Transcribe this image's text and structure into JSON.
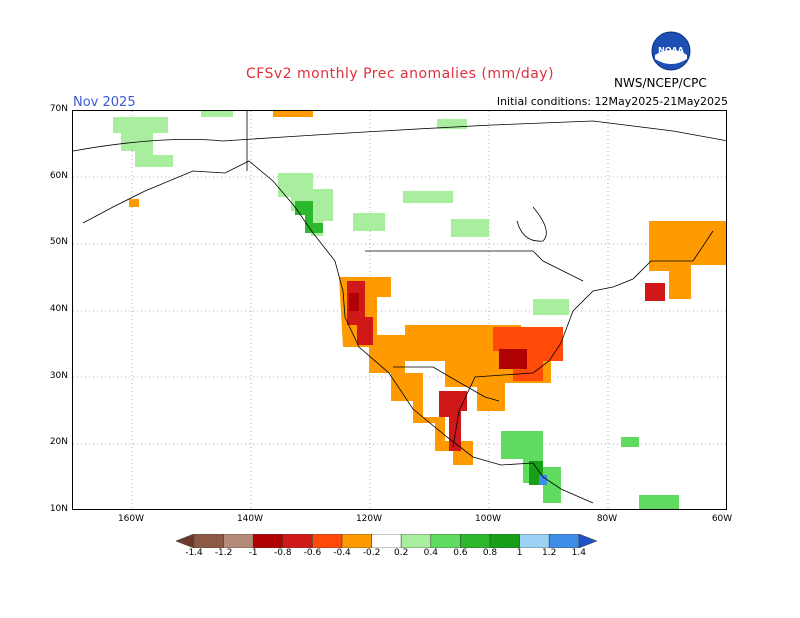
{
  "title": "CFSv2 monthly Prec anomalies (mm/day)",
  "forecast_month": "Nov 2025",
  "initial_conditions": "Initial conditions: 12May2025-21May2025",
  "agency": "NWS/NCEP/CPC",
  "logo": {
    "label": "NOAA",
    "icon": "noaa-logo-icon"
  },
  "lat_labels": [
    "70N",
    "60N",
    "50N",
    "40N",
    "30N",
    "20N",
    "10N"
  ],
  "lon_labels": [
    "160W",
    "140W",
    "120W",
    "100W",
    "80W",
    "60W"
  ],
  "colorbar": {
    "labels": [
      "-1.4",
      "-1.2",
      "-1",
      "-0.8",
      "-0.6",
      "-0.4",
      "-0.2",
      "0.2",
      "0.4",
      "0.6",
      "0.8",
      "1",
      "1.2",
      "1.4"
    ],
    "colors": [
      "#6b3a2a",
      "#8c5a44",
      "#b48a78",
      "#b00000",
      "#d01818",
      "#ff4a0a",
      "#ff9a00",
      "#ffffff",
      "#a8ee9e",
      "#5fdc5f",
      "#2cb82c",
      "#17a017",
      "#9cd2f4",
      "#3c8ce8",
      "#2052c8"
    ]
  },
  "colors": {
    "title": "#e0303c",
    "month": "#3b5bd6"
  }
}
